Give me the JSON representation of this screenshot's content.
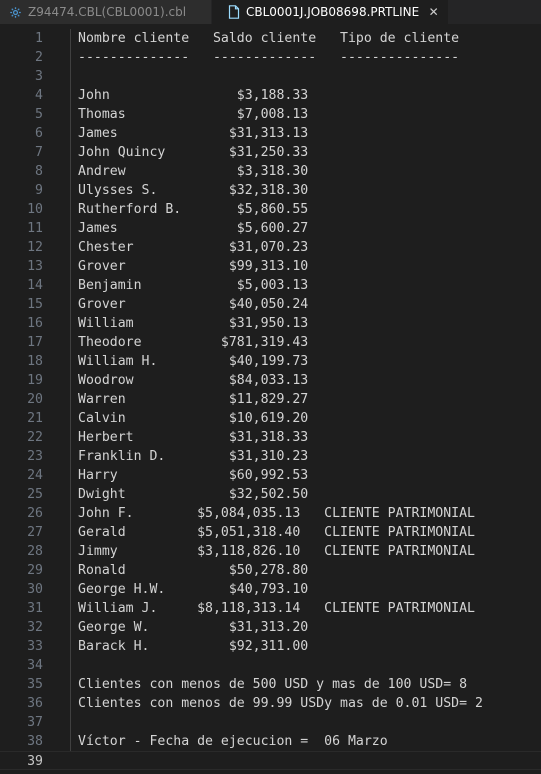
{
  "tabs": [
    {
      "label": "Z94474.CBL(CBL0001).cbl",
      "icon": "gear-icon",
      "active": false
    },
    {
      "label": "CBL0001J.JOB08698.PRTLINE",
      "icon": "file-icon",
      "active": true,
      "close_glyph": "✕"
    }
  ],
  "colors": {
    "active_tab_icon": "#9cdcfe",
    "inactive_tab_icon": "#4a90c8"
  },
  "editor": {
    "current_line": 39,
    "lines": [
      {
        "n": "1",
        "text": "Nombre cliente   Saldo cliente   Tipo de cliente"
      },
      {
        "n": "2",
        "text": "--------------   -------------   ---------------"
      },
      {
        "n": "3",
        "text": ""
      },
      {
        "n": "4",
        "text": "John                $3,188.33"
      },
      {
        "n": "5",
        "text": "Thomas              $7,008.13"
      },
      {
        "n": "6",
        "text": "James              $31,313.13"
      },
      {
        "n": "7",
        "text": "John Quincy        $31,250.33"
      },
      {
        "n": "8",
        "text": "Andrew              $3,318.30"
      },
      {
        "n": "9",
        "text": "Ulysses S.         $32,318.30"
      },
      {
        "n": "10",
        "text": "Rutherford B.       $5,860.55"
      },
      {
        "n": "11",
        "text": "James               $5,600.27"
      },
      {
        "n": "12",
        "text": "Chester            $31,070.23"
      },
      {
        "n": "13",
        "text": "Grover             $99,313.10"
      },
      {
        "n": "14",
        "text": "Benjamin            $5,003.13"
      },
      {
        "n": "15",
        "text": "Grover             $40,050.24"
      },
      {
        "n": "16",
        "text": "William            $31,950.13"
      },
      {
        "n": "17",
        "text": "Theodore          $781,319.43"
      },
      {
        "n": "18",
        "text": "William H.         $40,199.73"
      },
      {
        "n": "19",
        "text": "Woodrow            $84,033.13"
      },
      {
        "n": "20",
        "text": "Warren             $11,829.27"
      },
      {
        "n": "21",
        "text": "Calvin             $10,619.20"
      },
      {
        "n": "22",
        "text": "Herbert            $31,318.33"
      },
      {
        "n": "23",
        "text": "Franklin D.        $31,310.23"
      },
      {
        "n": "24",
        "text": "Harry              $60,992.53"
      },
      {
        "n": "25",
        "text": "Dwight             $32,502.50"
      },
      {
        "n": "26",
        "text": "John F.        $5,084,035.13   CLIENTE PATRIMONIAL"
      },
      {
        "n": "27",
        "text": "Gerald         $5,051,318.40   CLIENTE PATRIMONIAL"
      },
      {
        "n": "28",
        "text": "Jimmy          $3,118,826.10   CLIENTE PATRIMONIAL"
      },
      {
        "n": "29",
        "text": "Ronald             $50,278.80"
      },
      {
        "n": "30",
        "text": "George H.W.        $40,793.10"
      },
      {
        "n": "31",
        "text": "William J.     $8,118,313.14   CLIENTE PATRIMONIAL"
      },
      {
        "n": "32",
        "text": "George W.          $31,313.20"
      },
      {
        "n": "33",
        "text": "Barack H.          $92,311.00"
      },
      {
        "n": "34",
        "text": ""
      },
      {
        "n": "35",
        "text": "Clientes con menos de 500 USD y mas de 100 USD= 8"
      },
      {
        "n": "36",
        "text": "Clientes con menos de 99.99 USDy mas de 0.01 USD= 2"
      },
      {
        "n": "37",
        "text": ""
      },
      {
        "n": "38",
        "text": "Víctor - Fecha de ejecucion =  06 Marzo"
      },
      {
        "n": "39",
        "text": ""
      }
    ]
  }
}
